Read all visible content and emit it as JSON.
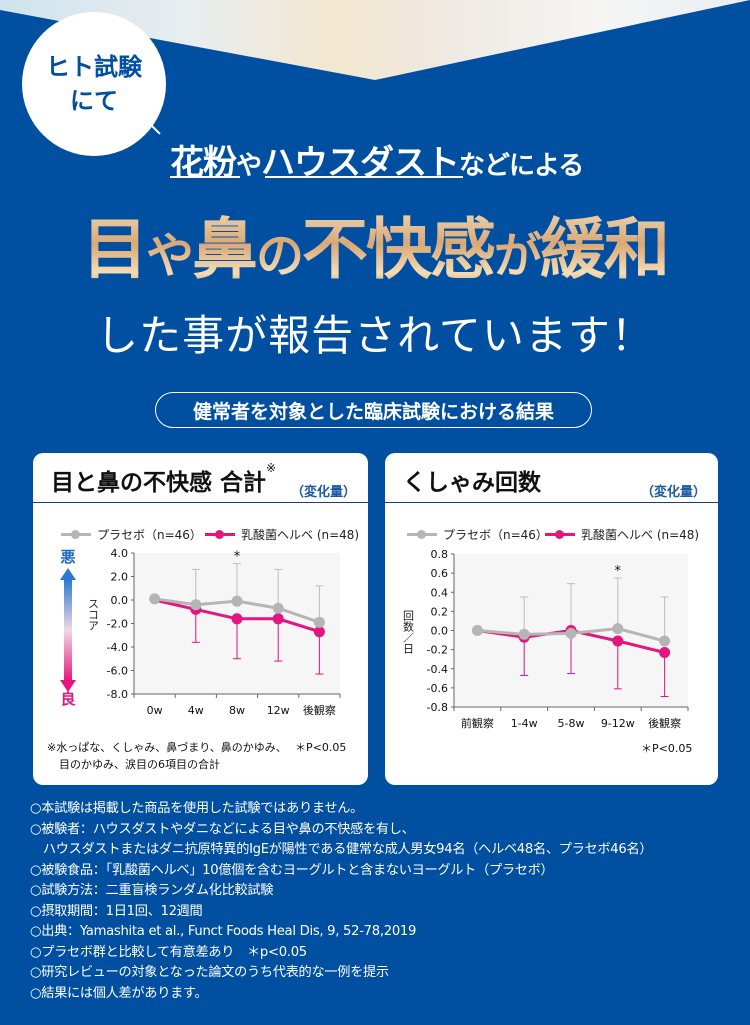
{
  "hero": {
    "badge_line1": "ヒト試験",
    "badge_line2": "にて",
    "sub_part1": "花粉",
    "sub_part2": "や",
    "sub_part3": "ハウスダスト",
    "sub_part4": "などによる",
    "headline_1": "目",
    "headline_2": "や",
    "headline_3": "鼻",
    "headline_4": "の",
    "headline_5": "不快感",
    "headline_6": "が",
    "headline_7": "緩和",
    "headline2": "した事が報告されています！",
    "pill": "健常者を対象とした臨床試験における結果"
  },
  "colors": {
    "background": "#004fa0",
    "placebo": "#b5b5b5",
    "helve": "#e3157f",
    "gold": "#d9a876"
  },
  "card1": {
    "title": "目と鼻の不快感 合計",
    "title_mark": "※",
    "unit": "（変化量）",
    "legend_placebo": "プラセボ（n=46）",
    "legend_helve": "乳酸菌ヘルベ (n=48)",
    "axis_label_top": "悪",
    "axis_label_bottom": "良",
    "ylabel": "スコア",
    "note_line1": "※水っぱな、くしゃみ、鼻づまり、鼻のかゆみ、",
    "note_line2": "目のかゆみ、涙目の6項目の合計",
    "pvalue": "＊P<0.05"
  },
  "card2": {
    "title": "くしゃみ回数",
    "unit": "（変化量）",
    "legend_placebo": "プラセボ（n=46）",
    "legend_helve": "乳酸菌ヘルベ (n=48)",
    "ylabel": "回数／日",
    "pvalue": "＊P<0.05"
  },
  "chart_data": [
    {
      "type": "line",
      "title": "目と鼻の不快感 合計",
      "xlabel": "",
      "ylabel": "スコア",
      "categories": [
        "0w",
        "4w",
        "8w",
        "12w",
        "後観察"
      ],
      "yticks": [
        "4.0",
        "2.0",
        "0.0",
        "-2.0",
        "-4.0",
        "-6.0",
        "-8.0"
      ],
      "ylim": [
        -8.0,
        4.0
      ],
      "series": [
        {
          "name": "プラセボ（n=46）",
          "values": [
            0.1,
            -0.4,
            -0.1,
            -0.7,
            -1.9
          ],
          "error_upper": [
            null,
            2.6,
            3.1,
            2.6,
            1.2
          ]
        },
        {
          "name": "乳酸菌ヘルベ (n=48)",
          "values": [
            0.0,
            -0.8,
            -1.6,
            -1.6,
            -2.7
          ],
          "error_lower": [
            null,
            -3.6,
            -5.0,
            -5.2,
            -6.3
          ]
        }
      ],
      "significance": [
        {
          "category": "8w",
          "mark": "*"
        }
      ],
      "legend_position": "top"
    },
    {
      "type": "line",
      "title": "くしゃみ回数",
      "xlabel": "",
      "ylabel": "回数／日",
      "categories": [
        "前観察",
        "1-4w",
        "5-8w",
        "9-12w",
        "後観察"
      ],
      "yticks": [
        "0.8",
        "0.6",
        "0.4",
        "0.2",
        "0.0",
        "-0.2",
        "-0.4",
        "-0.6",
        "-0.8"
      ],
      "ylim": [
        -0.8,
        0.8
      ],
      "series": [
        {
          "name": "プラセボ（n=46）",
          "values": [
            0.0,
            -0.04,
            -0.03,
            0.02,
            -0.11
          ],
          "error_upper": [
            null,
            0.35,
            0.49,
            0.55,
            0.35
          ]
        },
        {
          "name": "乳酸菌ヘルベ (n=48)",
          "values": [
            0.0,
            -0.07,
            0.0,
            -0.11,
            -0.23
          ],
          "error_lower": [
            null,
            -0.47,
            -0.45,
            -0.61,
            -0.69
          ]
        }
      ],
      "significance": [
        {
          "category": "9-12w",
          "mark": "*"
        }
      ],
      "legend_position": "top"
    }
  ],
  "footnotes": [
    "○本試験は掲載した商品を使用した試験ではありません。",
    "○被験者：ハウスダストやダニなどによる目や鼻の不快感を有し、",
    "　ハウスダストまたはダニ抗原特異的IgEが陽性である健常な成人男女94名（ヘルベ48名、プラセボ46名）",
    "○被験食品：「乳酸菌ヘルベ」10億個を含むヨーグルトと含まないヨーグルト（プラセボ）",
    "○試験方法：二重盲検ランダム化比較試験",
    "○摂取期間：1日1回、12週間",
    "○出典：Yamashita et al., Funct Foods Heal Dis, 9, 52-78,2019",
    "○プラセボ群と比較して有意差あり　＊p<0.05",
    "○研究レビューの対象となった論文のうち代表的な一例を提示",
    "○結果には個人差があります。"
  ]
}
